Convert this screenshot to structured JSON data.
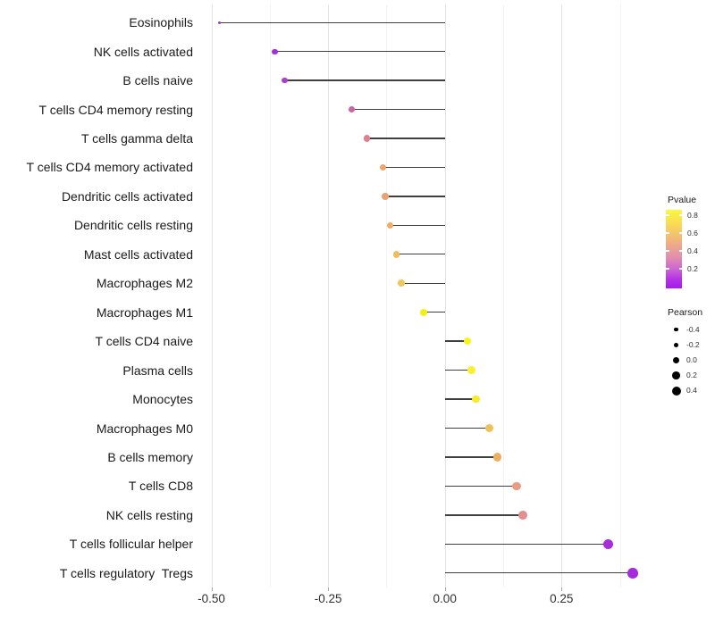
{
  "chart_data": {
    "type": "lollipop",
    "orientation": "horizontal",
    "title": "",
    "xlabel": "",
    "ylabel": "",
    "grid": "vertical major and minor gridlines, light gray, no horizontal gridlines",
    "legend_position": "right",
    "x_axis": {
      "tick_values": [
        -0.5,
        -0.25,
        0.0,
        0.25
      ],
      "tick_labels": [
        "-0.50",
        "-0.25",
        "0.00",
        "0.25"
      ],
      "minor_tick_values": [
        -0.375,
        -0.125,
        0.125,
        0.375
      ],
      "range": [
        -0.525,
        0.447
      ]
    },
    "categories": [
      "Eosinophils",
      "NK cells activated",
      "B cells naive",
      "T cells CD4 memory resting",
      "T cells gamma delta",
      "T cells CD4 memory activated",
      "Dendritic cells activated",
      "Dendritic cells resting",
      "Mast cells activated",
      "Macrophages M2",
      "Macrophages M1",
      "T cells CD4 naive",
      "Plasma cells",
      "Monocytes",
      "Macrophages M0",
      "B cells memory",
      "T cells CD8",
      "NK cells resting",
      "T cells follicular helper",
      "T cells regulatory  Tregs"
    ],
    "series": [
      {
        "name": "Pearson",
        "values": [
          -0.483,
          -0.364,
          -0.343,
          -0.2,
          -0.167,
          -0.133,
          -0.128,
          -0.117,
          -0.104,
          -0.093,
          -0.045,
          0.048,
          0.057,
          0.067,
          0.096,
          0.112,
          0.154,
          0.167,
          0.349,
          0.403
        ]
      }
    ],
    "point_colors": [
      "#A138CE",
      "#A232D2",
      "#AC3DD3",
      "#CC64A4",
      "#DD8093",
      "#EDA56C",
      "#ECA26F",
      "#EFAE64",
      "#EFBC60",
      "#F0C75A",
      "#F5F013",
      "#F8F318",
      "#FAF02F",
      "#F6EC2B",
      "#EEC25B",
      "#EDB05F",
      "#EA9C83",
      "#E28F92",
      "#A62FD8",
      "#A52BDB"
    ],
    "legends": {
      "pvalue": {
        "title": "Pvalue",
        "tick_values": [
          0.8,
          0.6,
          0.4,
          0.2
        ],
        "tick_labels": [
          "0.8",
          "0.6",
          "0.4",
          "0.2"
        ],
        "gradient_top_to_bottom": [
          "#FCF63C 0%",
          "#FAE14F 14%",
          "#F5C56C 30%",
          "#EEA98A 45%",
          "#E28FAE 60%",
          "#CC63D4 76%",
          "#B02EE8 90%",
          "#A718F0 100%"
        ]
      },
      "pearson": {
        "title": "Pearson",
        "entries": [
          {
            "label": "-0.4",
            "value": -0.4
          },
          {
            "label": "-0.2",
            "value": -0.2
          },
          {
            "label": "0.0",
            "value": 0.0
          },
          {
            "label": "0.2",
            "value": 0.2
          },
          {
            "label": "0.4",
            "value": 0.4
          }
        ],
        "dot_color": "#000000"
      }
    }
  },
  "colors": {
    "background": "#FFFFFF",
    "stem": "#3F3F3F",
    "grid_major": "#E4E4E4",
    "grid_minor": "#F2F2F2",
    "axis_text": "#303030",
    "category_text": "#1A1A1A",
    "legend_dot": "#000000"
  }
}
